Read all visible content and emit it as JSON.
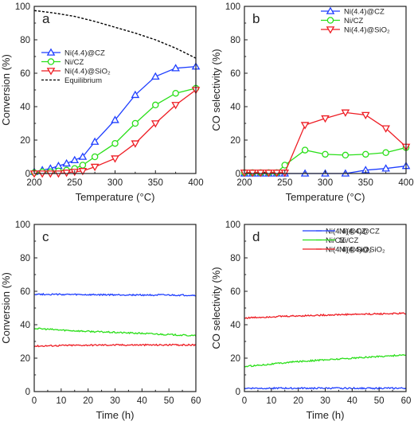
{
  "colors": {
    "blue": "#1f3fff",
    "green": "#2adf19",
    "red": "#ee1c23",
    "black": "#000000"
  },
  "chart_data": [
    {
      "panel": "a",
      "type": "line",
      "xlabel": "Temperature (°C)",
      "ylabel": "Conversion (%)",
      "xlim": [
        200,
        400
      ],
      "ylim": [
        0,
        100
      ],
      "xticks": [
        "200",
        "250",
        "300",
        "350",
        "400"
      ],
      "yticks": [
        "0",
        "20",
        "40",
        "60",
        "80",
        "100"
      ],
      "legend": "center-left",
      "series": [
        {
          "name": "Ni(4.4)@CZ",
          "color": "#1f3fff",
          "marker": "triangle-up",
          "x": [
            200,
            210,
            220,
            230,
            240,
            250,
            260,
            275,
            300,
            325,
            350,
            375,
            400
          ],
          "y": [
            1,
            2,
            3,
            4.5,
            6,
            8,
            10,
            19,
            32,
            47,
            58,
            63,
            64
          ]
        },
        {
          "name": "Ni/CZ",
          "color": "#2adf19",
          "marker": "circle",
          "x": [
            200,
            210,
            220,
            230,
            240,
            250,
            260,
            275,
            300,
            325,
            350,
            375,
            400
          ],
          "y": [
            0.5,
            1,
            1,
            1.5,
            2,
            3,
            5,
            10,
            18,
            30,
            41,
            48,
            51
          ]
        },
        {
          "name": "Ni(4.4)@SiO₂",
          "color": "#ee1c23",
          "marker": "triangle-down",
          "x": [
            200,
            210,
            220,
            230,
            240,
            250,
            260,
            275,
            300,
            325,
            350,
            375,
            400
          ],
          "y": [
            0,
            0,
            0,
            0,
            0.5,
            1,
            1.5,
            4,
            9,
            18,
            30,
            41,
            50
          ]
        },
        {
          "name": "Equilibrium",
          "color": "#000000",
          "marker": "none",
          "dashed": true,
          "x": [
            200,
            225,
            250,
            275,
            300,
            325,
            350,
            375,
            400
          ],
          "y": [
            97.5,
            96,
            94,
            91,
            87.5,
            84,
            80,
            75,
            69
          ]
        }
      ]
    },
    {
      "panel": "b",
      "type": "line",
      "xlabel": "Temperature (°C)",
      "ylabel": "CO selectivity (%)",
      "xlim": [
        200,
        400
      ],
      "ylim": [
        0,
        100
      ],
      "xticks": [
        "200",
        "250",
        "300",
        "350",
        "400"
      ],
      "yticks": [
        "0",
        "20",
        "40",
        "60",
        "80",
        "100"
      ],
      "legend": "top-right",
      "series": [
        {
          "name": "Ni(4.4)@CZ",
          "color": "#1f3fff",
          "marker": "triangle-up",
          "x": [
            200,
            210,
            220,
            230,
            240,
            250,
            275,
            300,
            325,
            350,
            375,
            400
          ],
          "y": [
            0,
            0,
            0,
            0,
            0,
            0,
            0,
            0,
            0,
            2,
            3,
            4.5
          ]
        },
        {
          "name": "Ni/CZ",
          "color": "#2adf19",
          "marker": "circle",
          "x": [
            200,
            210,
            220,
            230,
            240,
            250,
            275,
            300,
            325,
            350,
            375,
            400
          ],
          "y": [
            0.5,
            0.5,
            0.5,
            0.5,
            0.5,
            5,
            14,
            11.5,
            11,
            11.5,
            12.5,
            15.5
          ]
        },
        {
          "name": "Ni(4.4)@SiO₂",
          "color": "#ee1c23",
          "marker": "triangle-down",
          "x": [
            200,
            210,
            220,
            230,
            240,
            250,
            275,
            300,
            325,
            350,
            375,
            400
          ],
          "y": [
            0.5,
            0.5,
            0.5,
            0.5,
            0.5,
            0.5,
            29,
            33,
            36.5,
            35,
            27,
            16
          ]
        }
      ]
    },
    {
      "panel": "c",
      "type": "line",
      "xlabel": "Time (h)",
      "ylabel": "Conversion (%)",
      "xlim": [
        0,
        60
      ],
      "ylim": [
        0,
        100
      ],
      "xticks": [
        "0",
        "10",
        "20",
        "30",
        "40",
        "50",
        "60"
      ],
      "yticks": [
        "0",
        "20",
        "40",
        "60",
        "80",
        "100"
      ],
      "legend": "top-right",
      "noisy": true,
      "series": [
        {
          "name": "Ni(4.4)@CZ",
          "color": "#1f3fff",
          "x": [
            0,
            10,
            20,
            30,
            40,
            50,
            60
          ],
          "y": [
            58.3,
            58.1,
            57.9,
            57.9,
            57.8,
            57.7,
            57.6
          ]
        },
        {
          "name": "Ni/CZ",
          "color": "#2adf19",
          "x": [
            0,
            10,
            20,
            30,
            40,
            50,
            60
          ],
          "y": [
            37.8,
            36.8,
            36,
            35.4,
            34.8,
            34.1,
            33.4
          ]
        },
        {
          "name": "Ni(4.4)@SiO₂",
          "color": "#ee1c23",
          "x": [
            0,
            10,
            20,
            30,
            40,
            50,
            60
          ],
          "y": [
            27.2,
            27.6,
            27.8,
            27.9,
            27.9,
            27.9,
            27.9
          ]
        }
      ]
    },
    {
      "panel": "d",
      "type": "line",
      "xlabel": "Time (h)",
      "ylabel": "CO selectivity (%)",
      "xlim": [
        0,
        60
      ],
      "ylim": [
        0,
        100
      ],
      "xticks": [
        "0",
        "10",
        "20",
        "30",
        "40",
        "50",
        "60"
      ],
      "yticks": [
        "0",
        "20",
        "40",
        "60",
        "80",
        "100"
      ],
      "legend": "top-right",
      "noisy": true,
      "series": [
        {
          "name": "Ni(4.4)@CZ",
          "color": "#1f3fff",
          "x": [
            0,
            10,
            20,
            30,
            40,
            50,
            60
          ],
          "y": [
            2,
            2,
            2,
            2,
            2,
            2,
            2
          ]
        },
        {
          "name": "Ni/CZ",
          "color": "#2adf19",
          "x": [
            0,
            10,
            20,
            30,
            40,
            50,
            60
          ],
          "y": [
            15,
            16.5,
            18,
            19,
            20,
            21,
            22
          ]
        },
        {
          "name": "Ni(4.4)@SiO₂",
          "color": "#ee1c23",
          "x": [
            0,
            10,
            20,
            30,
            40,
            50,
            60
          ],
          "y": [
            44,
            44.8,
            45.3,
            45.8,
            46.2,
            46.5,
            46.8
          ]
        }
      ]
    }
  ]
}
